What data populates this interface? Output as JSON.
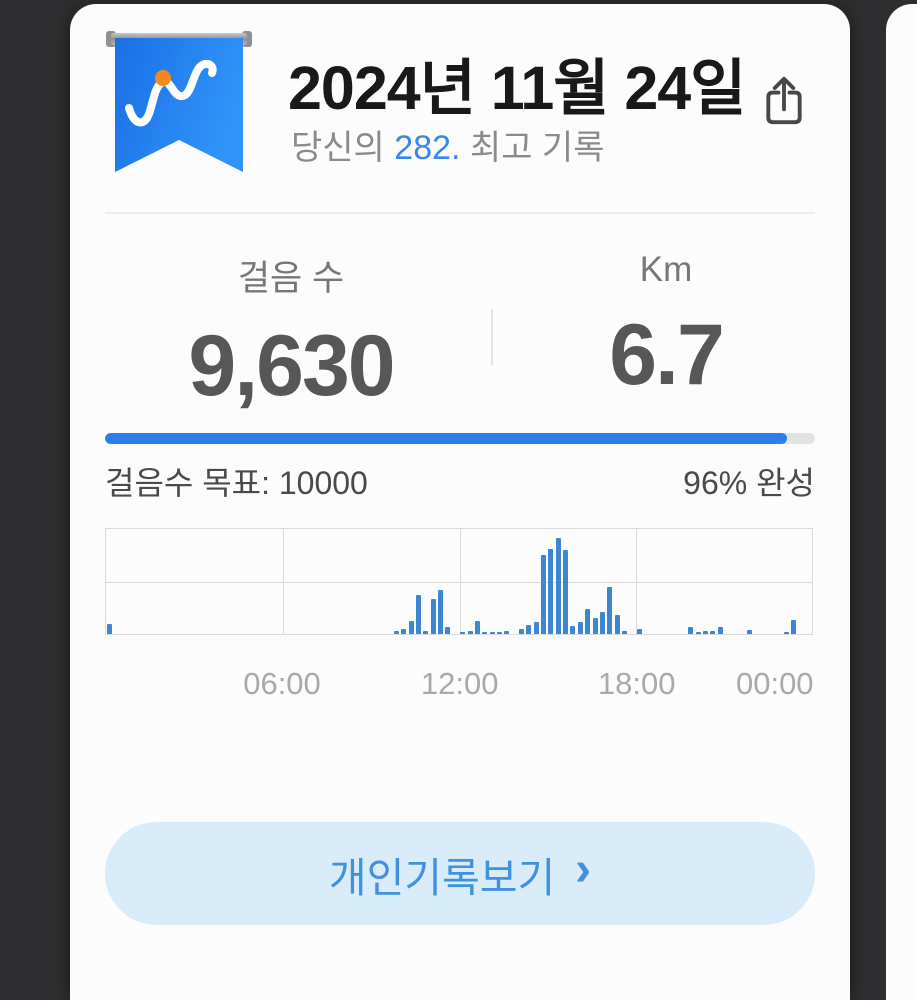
{
  "page": {
    "background_color": "#2e2e30",
    "card_color": "#fcfcfd"
  },
  "header": {
    "title": "2024년 11월 24일",
    "subtitle_prefix": "당신의 ",
    "record_number": "282.",
    "subtitle_suffix": " 최고 기록",
    "record_accent_color": "#3887f0",
    "badge_icon": "activity-ribbon-icon",
    "share_icon": "share-icon"
  },
  "stats": {
    "steps": {
      "label": "걸음 수",
      "value": "9,630"
    },
    "distance": {
      "label": "Km",
      "value": "6.7"
    }
  },
  "goal": {
    "left_label": "걸음수 목표: 10000",
    "right_label": "96% 완성",
    "progress_percent": 96,
    "fill_color": "#2d7ee8",
    "track_color": "#e3e3e5"
  },
  "chart_data": {
    "type": "bar",
    "title": "",
    "xlabel": "time of day (15-minute bins, 00:00–24:00)",
    "ylabel": "steps per 15 min (relative %)",
    "ylim": [
      0,
      100
    ],
    "grid": true,
    "bar_color": "#3c86d2",
    "tick_labels": [
      "06:00",
      "12:00",
      "18:00",
      "00:00"
    ],
    "tick_positions_pct": [
      25.0,
      50.1,
      75.1,
      94.6
    ],
    "gridline_positions_pct": [
      25.0,
      50.1,
      75.1
    ],
    "bars": [
      {
        "time": "00:00",
        "pct": 10
      },
      {
        "time": "09:45",
        "pct": 2.5
      },
      {
        "time": "10:00",
        "pct": 5
      },
      {
        "time": "10:15",
        "pct": 12
      },
      {
        "time": "10:30",
        "pct": 37
      },
      {
        "time": "10:45",
        "pct": 2.5
      },
      {
        "time": "11:00",
        "pct": 33
      },
      {
        "time": "11:15",
        "pct": 42
      },
      {
        "time": "11:30",
        "pct": 6.5
      },
      {
        "time": "12:00",
        "pct": 1.5
      },
      {
        "time": "12:15",
        "pct": 3
      },
      {
        "time": "12:30",
        "pct": 12
      },
      {
        "time": "12:45",
        "pct": 2
      },
      {
        "time": "13:00",
        "pct": 2
      },
      {
        "time": "13:15",
        "pct": 2
      },
      {
        "time": "13:30",
        "pct": 2.5
      },
      {
        "time": "14:00",
        "pct": 5
      },
      {
        "time": "14:15",
        "pct": 9
      },
      {
        "time": "14:30",
        "pct": 11
      },
      {
        "time": "14:45",
        "pct": 75
      },
      {
        "time": "15:00",
        "pct": 81
      },
      {
        "time": "15:15",
        "pct": 91
      },
      {
        "time": "15:30",
        "pct": 80
      },
      {
        "time": "15:45",
        "pct": 8
      },
      {
        "time": "16:00",
        "pct": 11
      },
      {
        "time": "16:15",
        "pct": 24
      },
      {
        "time": "16:30",
        "pct": 15.5
      },
      {
        "time": "16:45",
        "pct": 21
      },
      {
        "time": "17:00",
        "pct": 45
      },
      {
        "time": "17:15",
        "pct": 18
      },
      {
        "time": "17:30",
        "pct": 3
      },
      {
        "time": "18:00",
        "pct": 5
      },
      {
        "time": "19:45",
        "pct": 6.5
      },
      {
        "time": "20:00",
        "pct": 2
      },
      {
        "time": "20:15",
        "pct": 2.5
      },
      {
        "time": "20:30",
        "pct": 3
      },
      {
        "time": "20:45",
        "pct": 6.5
      },
      {
        "time": "21:45",
        "pct": 4
      },
      {
        "time": "23:00",
        "pct": 2
      },
      {
        "time": "23:15",
        "pct": 13.5
      }
    ]
  },
  "footer": {
    "button_label": "개인기록보기",
    "chevron": "›"
  }
}
